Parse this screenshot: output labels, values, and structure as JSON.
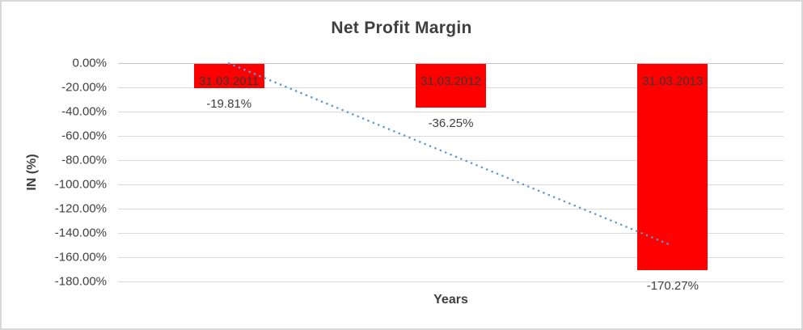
{
  "window": {
    "background": "#FFFFFF",
    "border_color": "#D8D8D8"
  },
  "chart_data": {
    "type": "bar",
    "title": "Net Profit Margin",
    "xlabel": "Years",
    "ylabel": "IN (%)",
    "categories": [
      "31.03.2011",
      "31.03.2012",
      "31.03.2013"
    ],
    "values": [
      -19.81,
      -36.25,
      -170.27
    ],
    "value_labels": [
      "-19.81%",
      "-36.25%",
      "-170.27%"
    ],
    "ylim": [
      -180,
      0
    ],
    "ytick_step": 20,
    "ytick_labels": [
      "0.00%",
      "-20.00%",
      "-40.00%",
      "-60.00%",
      "-80.00%",
      "-100.00%",
      "-120.00%",
      "-140.00%",
      "-160.00%",
      "-180.00%"
    ],
    "grid": true,
    "legend": "none",
    "bar_color": "#FF0000",
    "gridline_color": "#D9D9D9",
    "text_color": "#3F3F3F",
    "trendline": {
      "type": "linear",
      "style": "dotted",
      "color": "#5B9BD5",
      "start_pct": -0.21,
      "end_pct": -150.67
    }
  }
}
